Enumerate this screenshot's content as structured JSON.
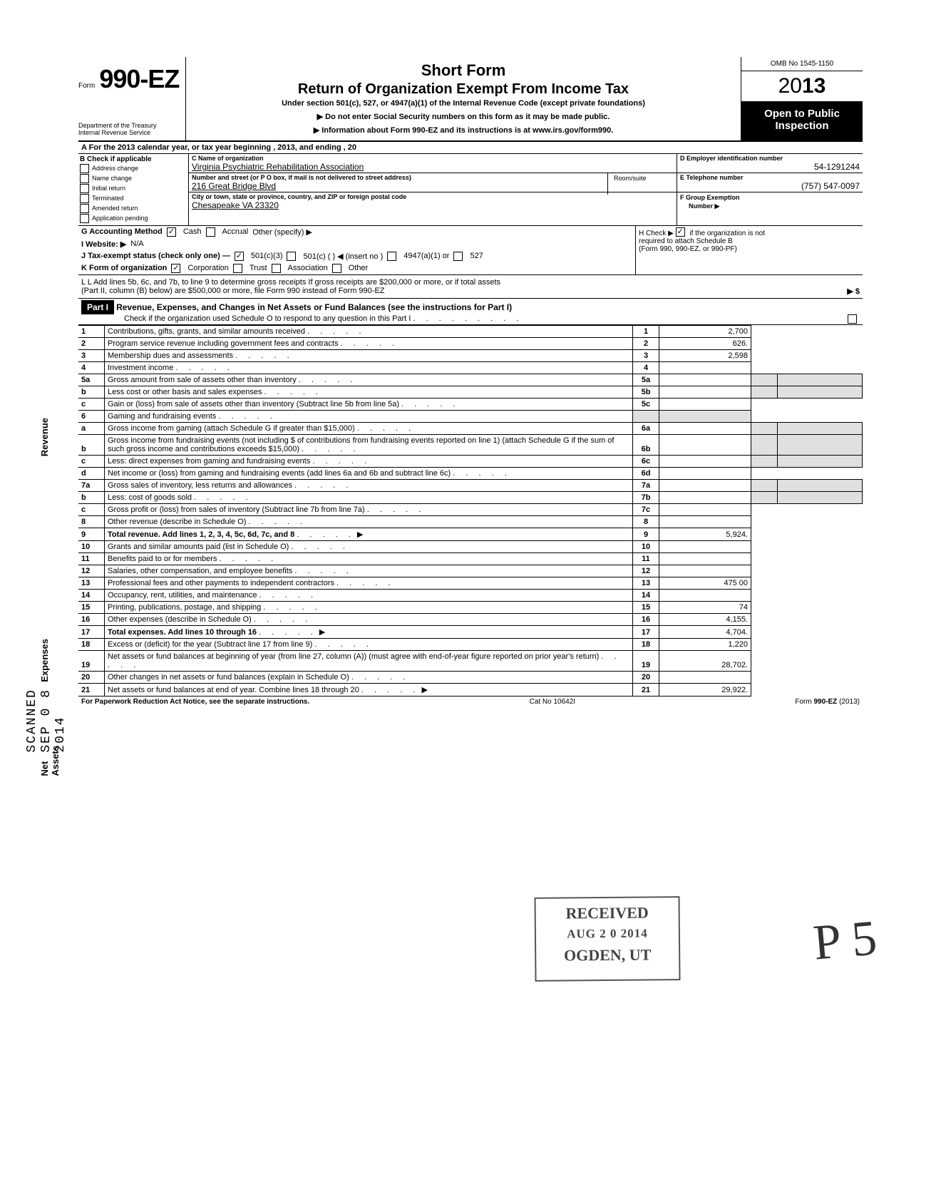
{
  "meta": {
    "omb": "OMB No 1545-1150",
    "year_prefix": "20",
    "year_bold": "13",
    "form_word": "Form",
    "form_num": "990-EZ",
    "dept1": "Department of the Treasury",
    "dept2": "Internal Revenue Service",
    "open1": "Open to Public",
    "open2": "Inspection"
  },
  "titles": {
    "short": "Short Form",
    "main": "Return of Organization Exempt From Income Tax",
    "under": "Under section 501(c), 527, or 4947(a)(1) of the Internal Revenue Code (except private foundations)",
    "warn": "▶ Do not enter Social Security numbers on this form as it may be made public.",
    "info": "▶ Information about Form 990-EZ and its instructions is at www.irs.gov/form990."
  },
  "rowA": "A  For the 2013 calendar year, or tax year beginning                                                                     , 2013, and ending                                              , 20",
  "colB": {
    "hdr": "B Check if applicable",
    "items": [
      "Address change",
      "Name change",
      "Initial return",
      "Terminated",
      "Amended return",
      "Application pending"
    ]
  },
  "colC": {
    "name_lbl": "C  Name of organization",
    "name_val": "Virginia Psychiatric Rehabilitation Association",
    "street_lbl": "Number and street (or P O box, if mail is not delivered to street address)",
    "room_lbl": "Room/suite",
    "street_val": "216 Great Bridge Blvd",
    "city_lbl": "City or town, state or province, country, and ZIP or foreign postal code",
    "city_val": "Chesapeake   VA  23320"
  },
  "colDE": {
    "d_lbl": "D Employer identification number",
    "d_val": "54-1291244",
    "e_lbl": "E Telephone number",
    "e_val": "(757) 547-0097",
    "f_lbl": "F Group Exemption",
    "f_lbl2": "Number ▶"
  },
  "rowG": {
    "g": "G Accounting Method",
    "cash": "Cash",
    "accrual": "Accrual",
    "other": "Other (specify) ▶"
  },
  "rowH": {
    "text": "H Check ▶",
    "text2": "if the organization is not",
    "text3": "required to attach Schedule B",
    "text4": "(Form 990, 990-EZ, or 990-PF)"
  },
  "rowI": {
    "i": "I  Website: ▶",
    "val": "N/A"
  },
  "rowJ": {
    "j": "J Tax-exempt status (check only one) —",
    "o1": "501(c)(3)",
    "o2": "501(c) (        ) ◀ (insert no )",
    "o3": "4947(a)(1) or",
    "o4": "527"
  },
  "rowK": {
    "k": "K Form of organization",
    "o1": "Corporation",
    "o2": "Trust",
    "o3": "Association",
    "o4": "Other"
  },
  "rowL": {
    "l1": "L  Add lines 5b, 6c, and 7b, to line 9 to determine gross receipts  If gross receipts are $200,000 or more, or if total assets",
    "l2": "(Part II, column (B) below) are $500,000 or more, file Form 990 instead of Form 990-EZ",
    "arrow": "▶   $"
  },
  "part1": {
    "hdr": "Part I",
    "title": "Revenue, Expenses, and Changes in Net Assets or Fund Balances (see the instructions for Part I)",
    "check": "Check if the organization used Schedule O to respond to any question in this Part I"
  },
  "lines": [
    {
      "n": "1",
      "d": "Contributions, gifts, grants, and similar amounts received",
      "rn": "1",
      "rv": "2,700"
    },
    {
      "n": "2",
      "d": "Program service revenue including government fees and contracts",
      "rn": "2",
      "rv": "626."
    },
    {
      "n": "3",
      "d": "Membership dues and assessments",
      "rn": "3",
      "rv": "2,598"
    },
    {
      "n": "4",
      "d": "Investment income",
      "rn": "4",
      "rv": ""
    },
    {
      "n": "5a",
      "d": "Gross amount from sale of assets other than inventory",
      "mn": "5a",
      "mv": ""
    },
    {
      "n": "b",
      "d": "Less cost or other basis and sales expenses",
      "mn": "5b",
      "mv": ""
    },
    {
      "n": "c",
      "d": "Gain or (loss) from sale of assets other than inventory (Subtract line 5b from line 5a)",
      "rn": "5c",
      "rv": ""
    },
    {
      "n": "6",
      "d": "Gaming and fundraising events"
    },
    {
      "n": "a",
      "d": "Gross income from gaming (attach Schedule G if greater than $15,000)",
      "mn": "6a",
      "mv": ""
    },
    {
      "n": "b",
      "d": "Gross income from fundraising events (not including  $                       of contributions from fundraising events reported on line 1) (attach Schedule G if the sum of such gross income and contributions exceeds $15,000)",
      "mn": "6b",
      "mv": ""
    },
    {
      "n": "c",
      "d": "Less: direct expenses from gaming and fundraising events",
      "mn": "6c",
      "mv": ""
    },
    {
      "n": "d",
      "d": "Net income or (loss) from gaming and fundraising events (add lines 6a and 6b and subtract line 6c)",
      "rn": "6d",
      "rv": ""
    },
    {
      "n": "7a",
      "d": "Gross sales of inventory, less returns and allowances",
      "mn": "7a",
      "mv": ""
    },
    {
      "n": "b",
      "d": "Less: cost of goods sold",
      "mn": "7b",
      "mv": ""
    },
    {
      "n": "c",
      "d": "Gross profit or (loss) from sales of inventory (Subtract line 7b from line 7a)",
      "rn": "7c",
      "rv": ""
    },
    {
      "n": "8",
      "d": "Other revenue (describe in Schedule O)",
      "rn": "8",
      "rv": ""
    },
    {
      "n": "9",
      "d": "Total revenue. Add lines 1, 2, 3, 4, 5c, 6d, 7c, and 8",
      "rn": "9",
      "rv": "5,924.",
      "bold": true,
      "arrow": true
    },
    {
      "n": "10",
      "d": "Grants and similar amounts paid (list in Schedule O)",
      "rn": "10",
      "rv": ""
    },
    {
      "n": "11",
      "d": "Benefits paid to or for members",
      "rn": "11",
      "rv": ""
    },
    {
      "n": "12",
      "d": "Salaries, other compensation, and employee benefits",
      "rn": "12",
      "rv": ""
    },
    {
      "n": "13",
      "d": "Professional fees and other payments to independent contractors",
      "rn": "13",
      "rv": "475 00"
    },
    {
      "n": "14",
      "d": "Occupancy, rent, utilities, and maintenance",
      "rn": "14",
      "rv": ""
    },
    {
      "n": "15",
      "d": "Printing, publications, postage, and shipping",
      "rn": "15",
      "rv": "74"
    },
    {
      "n": "16",
      "d": "Other expenses (describe in Schedule O)",
      "rn": "16",
      "rv": "4,155."
    },
    {
      "n": "17",
      "d": "Total expenses. Add lines 10 through 16",
      "rn": "17",
      "rv": "4,704.",
      "bold": true,
      "arrow": true
    },
    {
      "n": "18",
      "d": "Excess or (deficit) for the year (Subtract line 17 from line 9)",
      "rn": "18",
      "rv": "1,220"
    },
    {
      "n": "19",
      "d": "Net assets or fund balances at beginning of year (from line 27, column (A)) (must agree with end-of-year figure reported on prior year's return)",
      "rn": "19",
      "rv": "28,702."
    },
    {
      "n": "20",
      "d": "Other changes in net assets or fund balances (explain in Schedule O)",
      "rn": "20",
      "rv": ""
    },
    {
      "n": "21",
      "d": "Net assets or fund balances at end of year. Combine lines 18 through 20",
      "rn": "21",
      "rv": "29,922.",
      "arrow": true
    }
  ],
  "side_labels": {
    "scanned": "SCANNED SEP 0 8 2014",
    "revenue": "Revenue",
    "expenses": "Expenses",
    "netassets": "Net Assets"
  },
  "stamp": {
    "l1": "RECEIVED",
    "l2": "AUG 2 0 2014",
    "l3": "OGDEN, UT"
  },
  "footer": {
    "left": "For Paperwork Reduction Act Notice, see the separate instructions.",
    "mid": "Cat No 10642I",
    "right": "Form 990-EZ (2013)"
  },
  "initial": "P     5"
}
